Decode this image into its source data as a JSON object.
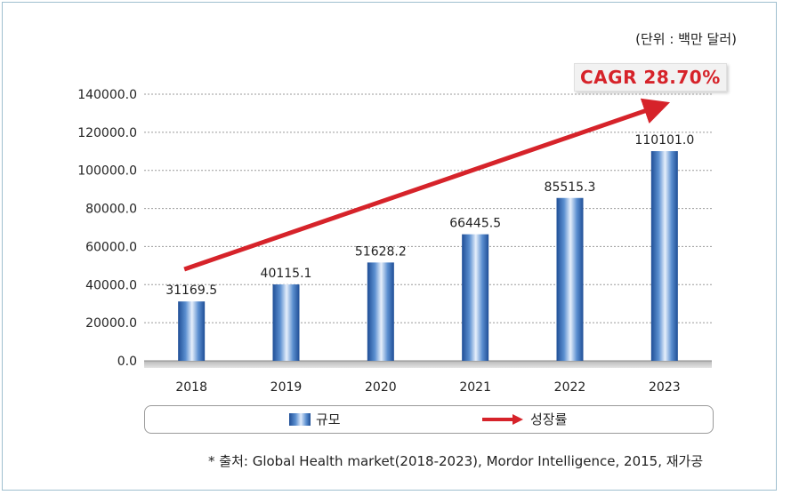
{
  "unit_label": "(단위 : 백만 달러)",
  "cagr_label": "CAGR 28.70%",
  "legend": {
    "bar_label": "규모",
    "line_label": "성장률"
  },
  "footnote": "* 출처: Global Health market(2018-2023), Mordor Intelligence, 2015, 재가공",
  "colors": {
    "bar_dark": "#1f4e96",
    "bar_light": "#dfeafa",
    "arrow": "#d6232a",
    "cagr_text": "#d6232a"
  },
  "chart_data": {
    "type": "bar",
    "categories": [
      "2018",
      "2019",
      "2020",
      "2021",
      "2022",
      "2023"
    ],
    "series": [
      {
        "name": "규모",
        "values": [
          31169.5,
          40115.1,
          51628.2,
          66445.5,
          85515.3,
          110101.0
        ],
        "value_labels": [
          "31169.5",
          "40115.1",
          "51628.2",
          "66445.5",
          "85515.3",
          "110101.0"
        ]
      }
    ],
    "trend_arrow": {
      "name": "성장률",
      "label": "CAGR 28.70%"
    },
    "ylim": [
      0,
      140000
    ],
    "yticks": [
      0,
      20000,
      40000,
      60000,
      80000,
      100000,
      120000,
      140000
    ],
    "ytick_labels": [
      "0.0",
      "20000.0",
      "40000.0",
      "60000.0",
      "80000.0",
      "100000.0",
      "120000.0",
      "140000.0"
    ],
    "grid": true,
    "legend_position": "bottom"
  }
}
